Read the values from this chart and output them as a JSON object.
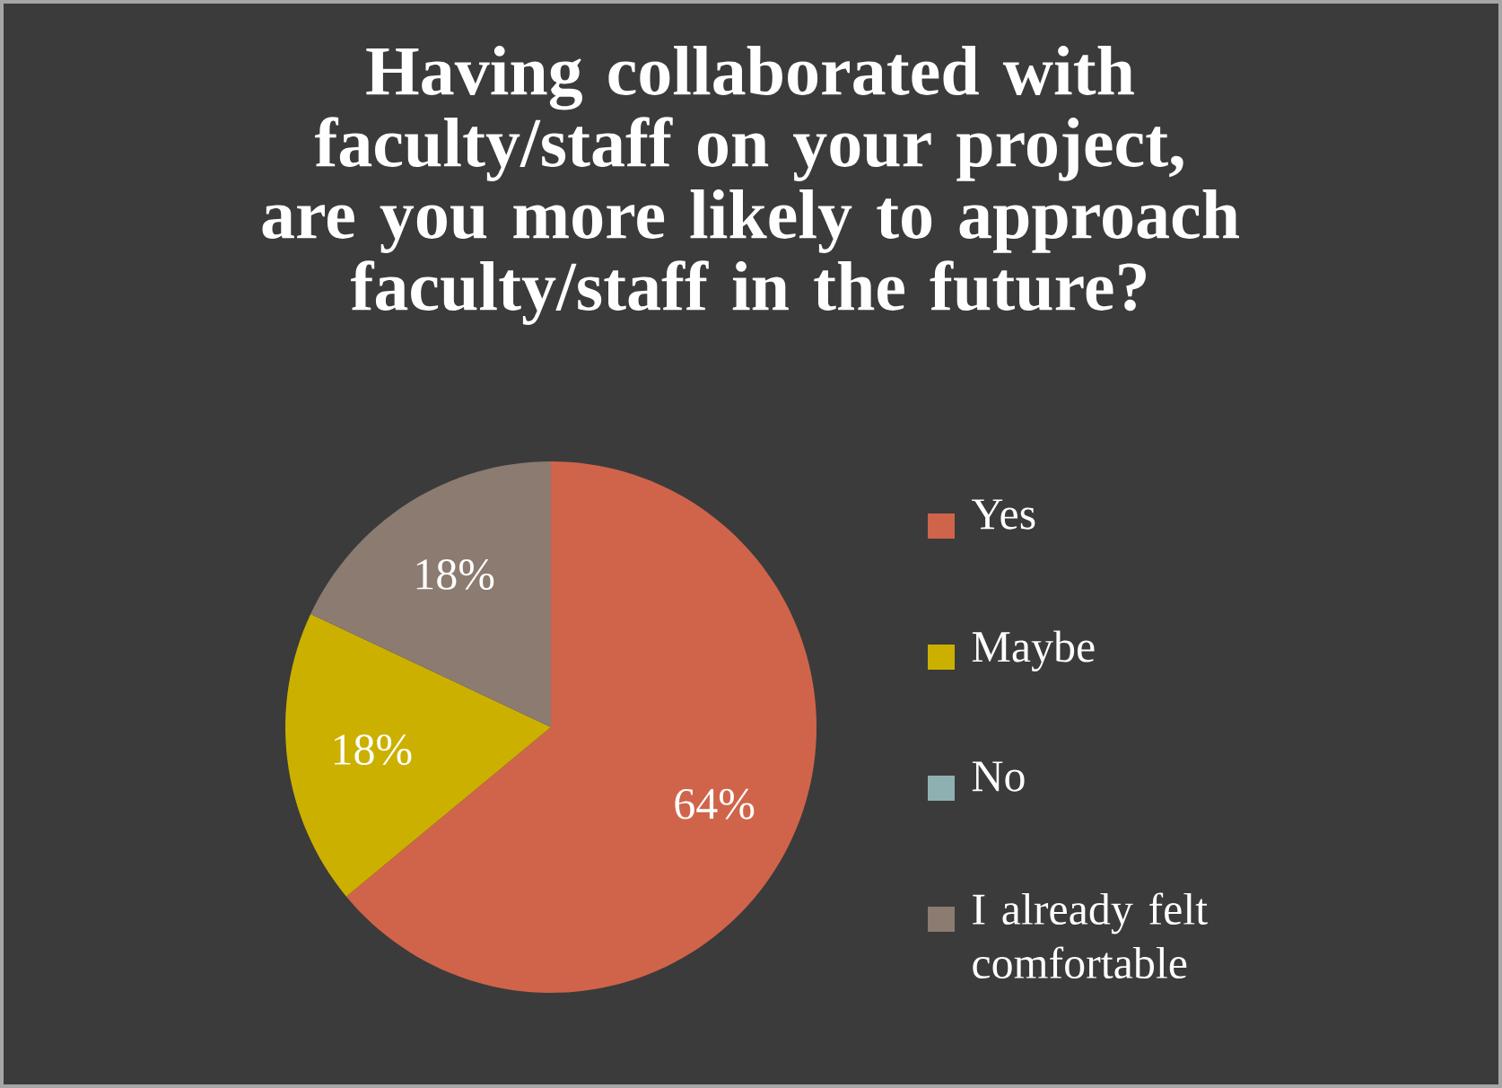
{
  "chart_data": {
    "type": "pie",
    "title": "Having collaborated with faculty/staff on your project, are you more likely to approach faculty/staff in the future?",
    "categories": [
      "Yes",
      "Maybe",
      "No",
      "I already felt comfortable"
    ],
    "values": [
      64,
      18,
      0,
      18
    ],
    "colors": [
      "#d0644a",
      "#ccb000",
      "#8fb0b0",
      "#8b7b70"
    ],
    "value_labels": [
      "64%",
      "18%",
      null,
      "18%"
    ],
    "legend": "right"
  }
}
